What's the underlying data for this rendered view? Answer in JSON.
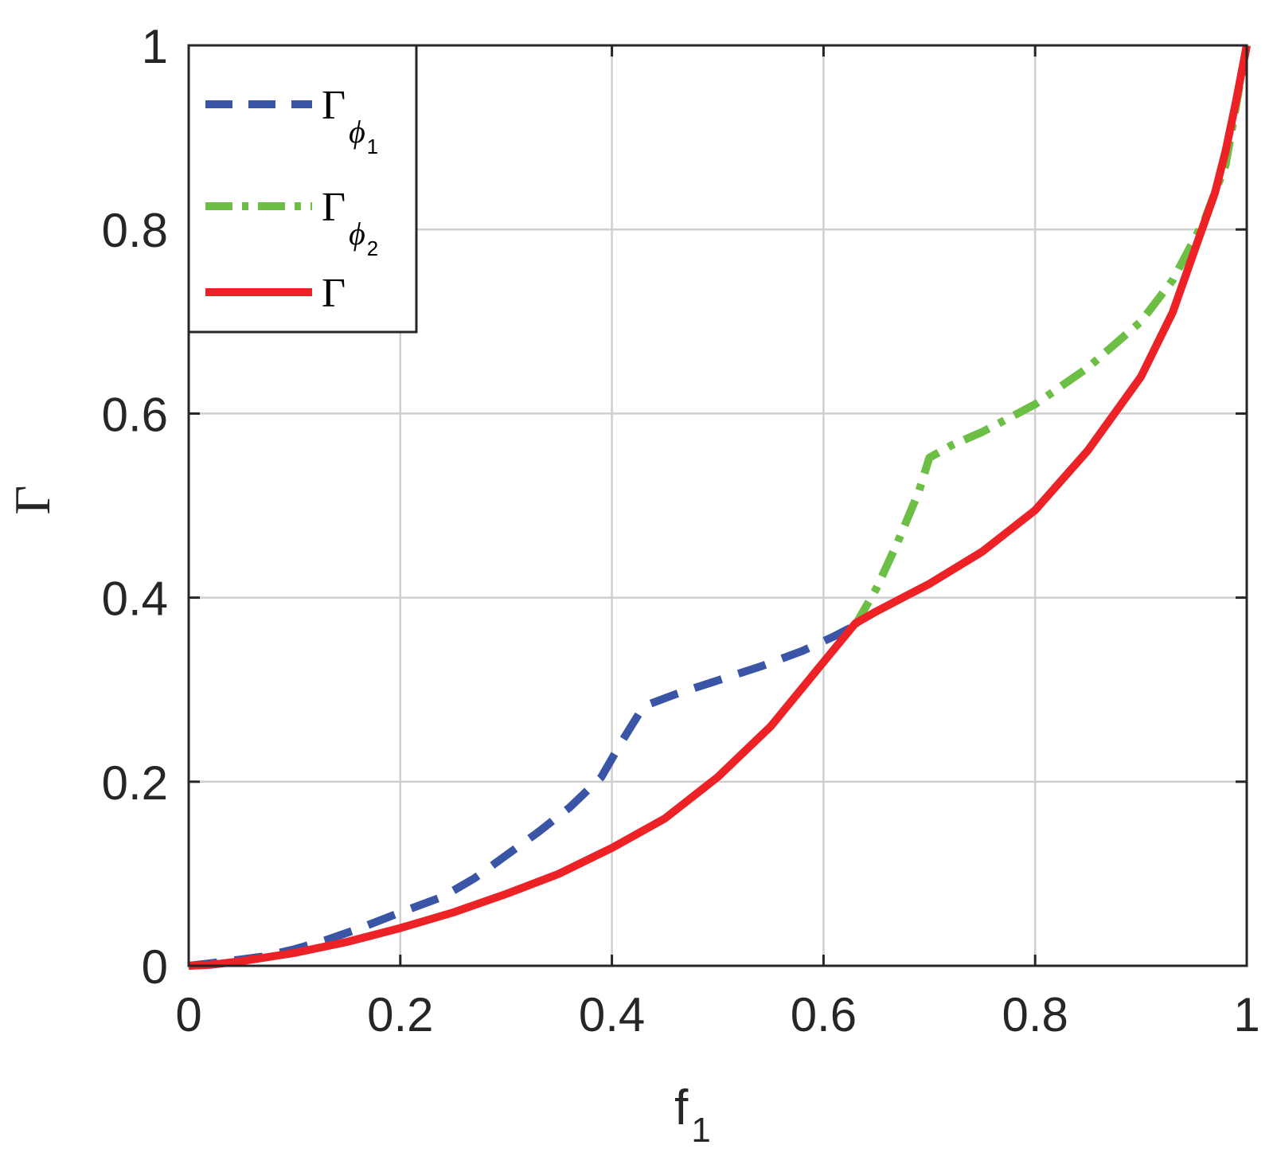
{
  "chart_data": {
    "type": "line",
    "xlabel": "f",
    "xlabel_sub": "1",
    "ylabel": "Γ",
    "xlim": [
      0,
      1
    ],
    "ylim": [
      0,
      1
    ],
    "grid": true,
    "legend_position": "top-left",
    "x_ticks": [
      "0",
      "0.2",
      "0.4",
      "0.6",
      "0.8",
      "1"
    ],
    "y_ticks": [
      "0",
      "0.2",
      "0.4",
      "0.6",
      "0.8",
      "1"
    ],
    "series": [
      {
        "legend_main": "Γ",
        "legend_sub": "ϕ",
        "legend_subsub": "1",
        "color": "#3b55a6",
        "style": "dashed",
        "x": [
          0.0,
          0.03,
          0.07,
          0.1,
          0.13,
          0.16,
          0.2,
          0.24,
          0.27,
          0.3,
          0.33,
          0.36,
          0.39,
          0.41,
          0.43,
          0.46,
          0.5,
          0.54,
          0.58,
          0.61,
          0.63
        ],
        "y": [
          0.0,
          0.004,
          0.01,
          0.018,
          0.028,
          0.04,
          0.058,
          0.075,
          0.095,
          0.12,
          0.145,
          0.172,
          0.205,
          0.245,
          0.282,
          0.295,
          0.31,
          0.325,
          0.342,
          0.358,
          0.37
        ]
      },
      {
        "legend_main": "Γ",
        "legend_sub": "ϕ",
        "legend_subsub": "2",
        "color": "#6cbe45",
        "style": "dashdot",
        "x": [
          0.63,
          0.65,
          0.67,
          0.69,
          0.7,
          0.72,
          0.75,
          0.8,
          0.85,
          0.9,
          0.93,
          0.96,
          0.98,
          1.0
        ],
        "y": [
          0.37,
          0.41,
          0.46,
          0.515,
          0.552,
          0.565,
          0.58,
          0.61,
          0.65,
          0.7,
          0.745,
          0.81,
          0.87,
          1.0
        ]
      },
      {
        "legend_main": "Γ",
        "color": "#ec2226",
        "style": "solid",
        "x": [
          0.0,
          0.02,
          0.05,
          0.1,
          0.15,
          0.2,
          0.25,
          0.3,
          0.35,
          0.4,
          0.45,
          0.5,
          0.55,
          0.6,
          0.63,
          0.65,
          0.7,
          0.75,
          0.8,
          0.85,
          0.9,
          0.93,
          0.95,
          0.97,
          0.98,
          0.99,
          1.0
        ],
        "y": [
          0.0,
          0.001,
          0.005,
          0.014,
          0.026,
          0.041,
          0.058,
          0.078,
          0.1,
          0.128,
          0.16,
          0.205,
          0.26,
          0.33,
          0.372,
          0.385,
          0.415,
          0.45,
          0.495,
          0.56,
          0.64,
          0.71,
          0.775,
          0.84,
          0.885,
          0.94,
          1.0
        ]
      }
    ]
  }
}
